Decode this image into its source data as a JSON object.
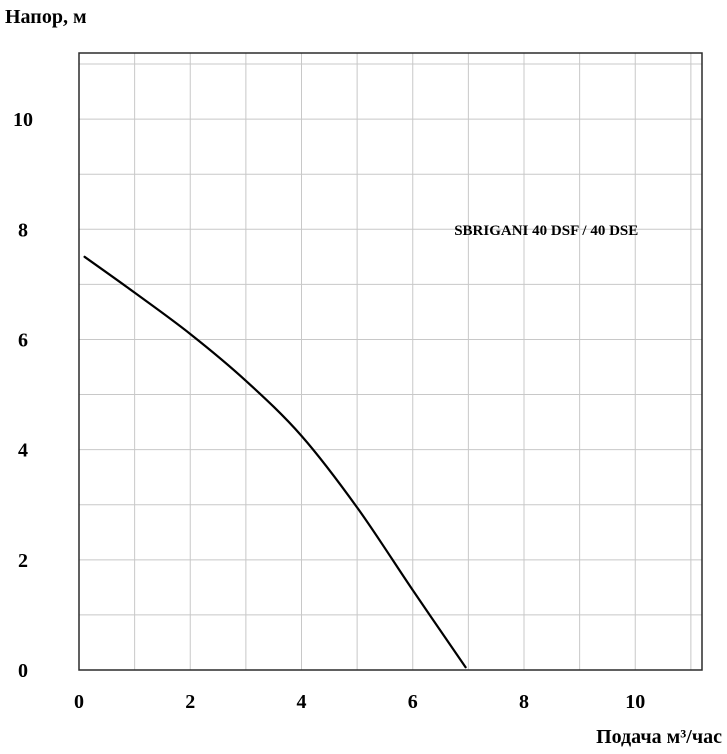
{
  "chart_data": {
    "type": "line",
    "title": "",
    "xlabel": "Подача м³/час",
    "ylabel": "Напор, м",
    "xlim": [
      0,
      11.2
    ],
    "ylim": [
      0,
      11.2
    ],
    "x_ticks": [
      0,
      2,
      4,
      6,
      8,
      10
    ],
    "x_tick_labels": [
      "0",
      "2",
      "4",
      "6",
      "8",
      "10"
    ],
    "y_ticks": [
      0,
      2,
      4,
      6,
      8,
      10
    ],
    "y_tick_labels": [
      "0",
      "2",
      "4",
      "6",
      "8",
      "10"
    ],
    "grid": true,
    "grid_step": 1,
    "legend": "none",
    "annotations": [
      {
        "text": "SBRIGANI 40 DSF / 40 DSE",
        "x": 8.4,
        "y": 7.9
      }
    ],
    "series": [
      {
        "name": "SBRIGANI 40 DSF / 40 DSE",
        "color": "#000000",
        "x": [
          0.1,
          1,
          2,
          3,
          4,
          5,
          6,
          6.95
        ],
        "y": [
          7.5,
          6.85,
          6.1,
          5.25,
          4.25,
          2.95,
          1.45,
          0.05
        ]
      }
    ]
  }
}
